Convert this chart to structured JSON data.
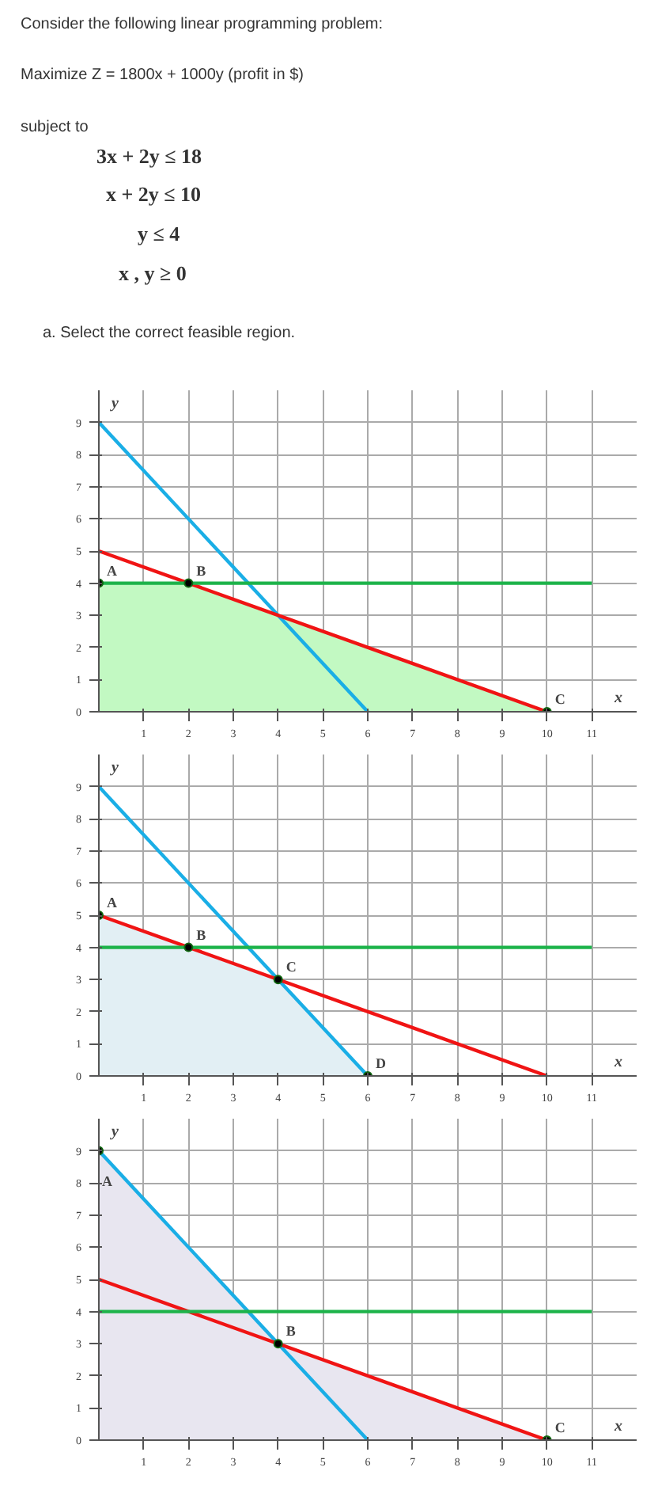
{
  "chart_data": [
    {
      "type": "other",
      "annotations": [
        "Consider the following linear programming problem:",
        "Maximize Z = 1800x + 1000y (profit in $)",
        "subject to",
        "3x + 2y ≤ 18",
        "x + 2y ≤ 10",
        "y ≤ 4",
        "x , y ≥ 0",
        "a. Select the correct feasible region."
      ]
    },
    {
      "type": "line",
      "xlabel": "x",
      "ylabel": "y",
      "xlim": [
        0,
        12
      ],
      "ylim": [
        0,
        10
      ],
      "xticks": [
        1,
        2,
        3,
        4,
        5,
        6,
        7,
        8,
        9,
        10,
        11
      ],
      "yticks": [
        0,
        1,
        2,
        3,
        4,
        5,
        6,
        7,
        8,
        9
      ],
      "grid": true,
      "line_style": "solid",
      "series": [
        {
          "type": "area",
          "color": "#c2f9c2",
          "x": [
            0,
            2,
            4,
            10
          ],
          "values": [
            4,
            4,
            3,
            0
          ]
        },
        {
          "type": "line",
          "color": "#1aaee6",
          "x": [
            0,
            6
          ],
          "values": [
            9,
            0
          ]
        },
        {
          "type": "line",
          "color": "#f01414",
          "x": [
            0,
            10
          ],
          "values": [
            5,
            0
          ]
        },
        {
          "type": "line",
          "color": "#1db34a",
          "x": [
            0,
            11
          ],
          "values": [
            4,
            4
          ]
        },
        {
          "type": "scatter",
          "color": "#000000",
          "marker": "circle",
          "x": [
            0,
            2,
            10
          ],
          "values": [
            4,
            4,
            0
          ]
        }
      ],
      "annotations": [
        {
          "text": "A",
          "x": 0,
          "y": 4
        },
        {
          "text": "B",
          "x": 2,
          "y": 4
        },
        {
          "text": "C",
          "x": 10,
          "y": 0
        }
      ]
    },
    {
      "type": "line",
      "xlabel": "x",
      "ylabel": "y",
      "xlim": [
        0,
        12
      ],
      "ylim": [
        0,
        10
      ],
      "xticks": [
        1,
        2,
        3,
        4,
        5,
        6,
        7,
        8,
        9,
        10,
        11
      ],
      "yticks": [
        0,
        1,
        2,
        3,
        4,
        5,
        6,
        7,
        8,
        9
      ],
      "grid": true,
      "line_style": "solid",
      "series": [
        {
          "type": "area",
          "color": "#e2eff4",
          "x": [
            0,
            2,
            4,
            6
          ],
          "values": [
            5,
            4,
            3,
            0
          ]
        },
        {
          "type": "line",
          "color": "#1aaee6",
          "x": [
            0,
            6
          ],
          "values": [
            9,
            0
          ]
        },
        {
          "type": "line",
          "color": "#f01414",
          "x": [
            0,
            10
          ],
          "values": [
            5,
            0
          ]
        },
        {
          "type": "line",
          "color": "#1db34a",
          "x": [
            0,
            11
          ],
          "values": [
            4,
            4
          ]
        },
        {
          "type": "scatter",
          "color": "#000000",
          "marker": "circle",
          "x": [
            0,
            2,
            4,
            6
          ],
          "values": [
            5,
            4,
            3,
            0
          ]
        }
      ],
      "annotations": [
        {
          "text": "A",
          "x": 0,
          "y": 5
        },
        {
          "text": "B",
          "x": 2,
          "y": 4
        },
        {
          "text": "C",
          "x": 4,
          "y": 3
        },
        {
          "text": "D",
          "x": 6,
          "y": 0
        }
      ]
    },
    {
      "type": "line",
      "xlabel": "x",
      "ylabel": "y",
      "xlim": [
        0,
        12
      ],
      "ylim": [
        0,
        10
      ],
      "xticks": [
        1,
        2,
        3,
        4,
        5,
        6,
        7,
        8,
        9,
        10,
        11
      ],
      "yticks": [
        0,
        1,
        2,
        3,
        4,
        5,
        6,
        7,
        8,
        9
      ],
      "grid": true,
      "line_style": "solid",
      "series": [
        {
          "type": "area",
          "color": "#e8e6f0",
          "x": [
            0,
            4,
            10
          ],
          "values": [
            9,
            3,
            0
          ]
        },
        {
          "type": "line",
          "color": "#1aaee6",
          "x": [
            0,
            6
          ],
          "values": [
            9,
            0
          ]
        },
        {
          "type": "line",
          "color": "#f01414",
          "x": [
            0,
            10
          ],
          "values": [
            5,
            0
          ]
        },
        {
          "type": "line",
          "color": "#1db34a",
          "x": [
            0,
            11
          ],
          "values": [
            4,
            4
          ]
        },
        {
          "type": "scatter",
          "color": "#000000",
          "marker": "circle",
          "x": [
            0,
            4,
            10
          ],
          "values": [
            9,
            3,
            0
          ]
        }
      ],
      "annotations": [
        {
          "text": "A",
          "x": 0,
          "y": 9
        },
        {
          "text": "B",
          "x": 4,
          "y": 3
        },
        {
          "text": "C",
          "x": 10,
          "y": 0
        }
      ]
    }
  ]
}
